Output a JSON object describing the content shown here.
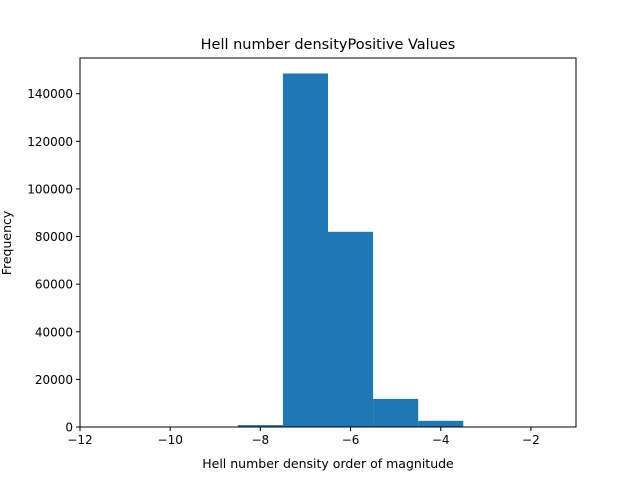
{
  "chart_data": {
    "type": "bar",
    "title": "Hell number densityPositive Values",
    "xlabel": "Hell number density order of magnitude",
    "ylabel": "Frequency",
    "xlim": [
      -12,
      -1
    ],
    "ylim": [
      0,
      155000
    ],
    "xticks": [
      -12,
      -10,
      -8,
      -6,
      -4,
      -2
    ],
    "xtick_labels": [
      "−12",
      "−10",
      "−8",
      "−6",
      "−4",
      "−2"
    ],
    "yticks": [
      0,
      20000,
      40000,
      60000,
      80000,
      100000,
      120000,
      140000
    ],
    "ytick_labels": [
      "0",
      "20000",
      "40000",
      "60000",
      "80000",
      "100000",
      "120000",
      "140000"
    ],
    "bins": [
      {
        "x0": -11.5,
        "x1": -10.5,
        "value": 0
      },
      {
        "x0": -10.5,
        "x1": -9.5,
        "value": 0
      },
      {
        "x0": -9.5,
        "x1": -8.5,
        "value": 0
      },
      {
        "x0": -8.5,
        "x1": -7.5,
        "value": 800
      },
      {
        "x0": -7.5,
        "x1": -6.5,
        "value": 148500
      },
      {
        "x0": -6.5,
        "x1": -5.5,
        "value": 82000
      },
      {
        "x0": -5.5,
        "x1": -4.5,
        "value": 11800
      },
      {
        "x0": -4.5,
        "x1": -3.5,
        "value": 2600
      },
      {
        "x0": -3.5,
        "x1": -2.5,
        "value": 0
      },
      {
        "x0": -2.5,
        "x1": -1.5,
        "value": 0
      }
    ],
    "bar_color": "#1f77b4",
    "grid": false,
    "legend": "none"
  }
}
